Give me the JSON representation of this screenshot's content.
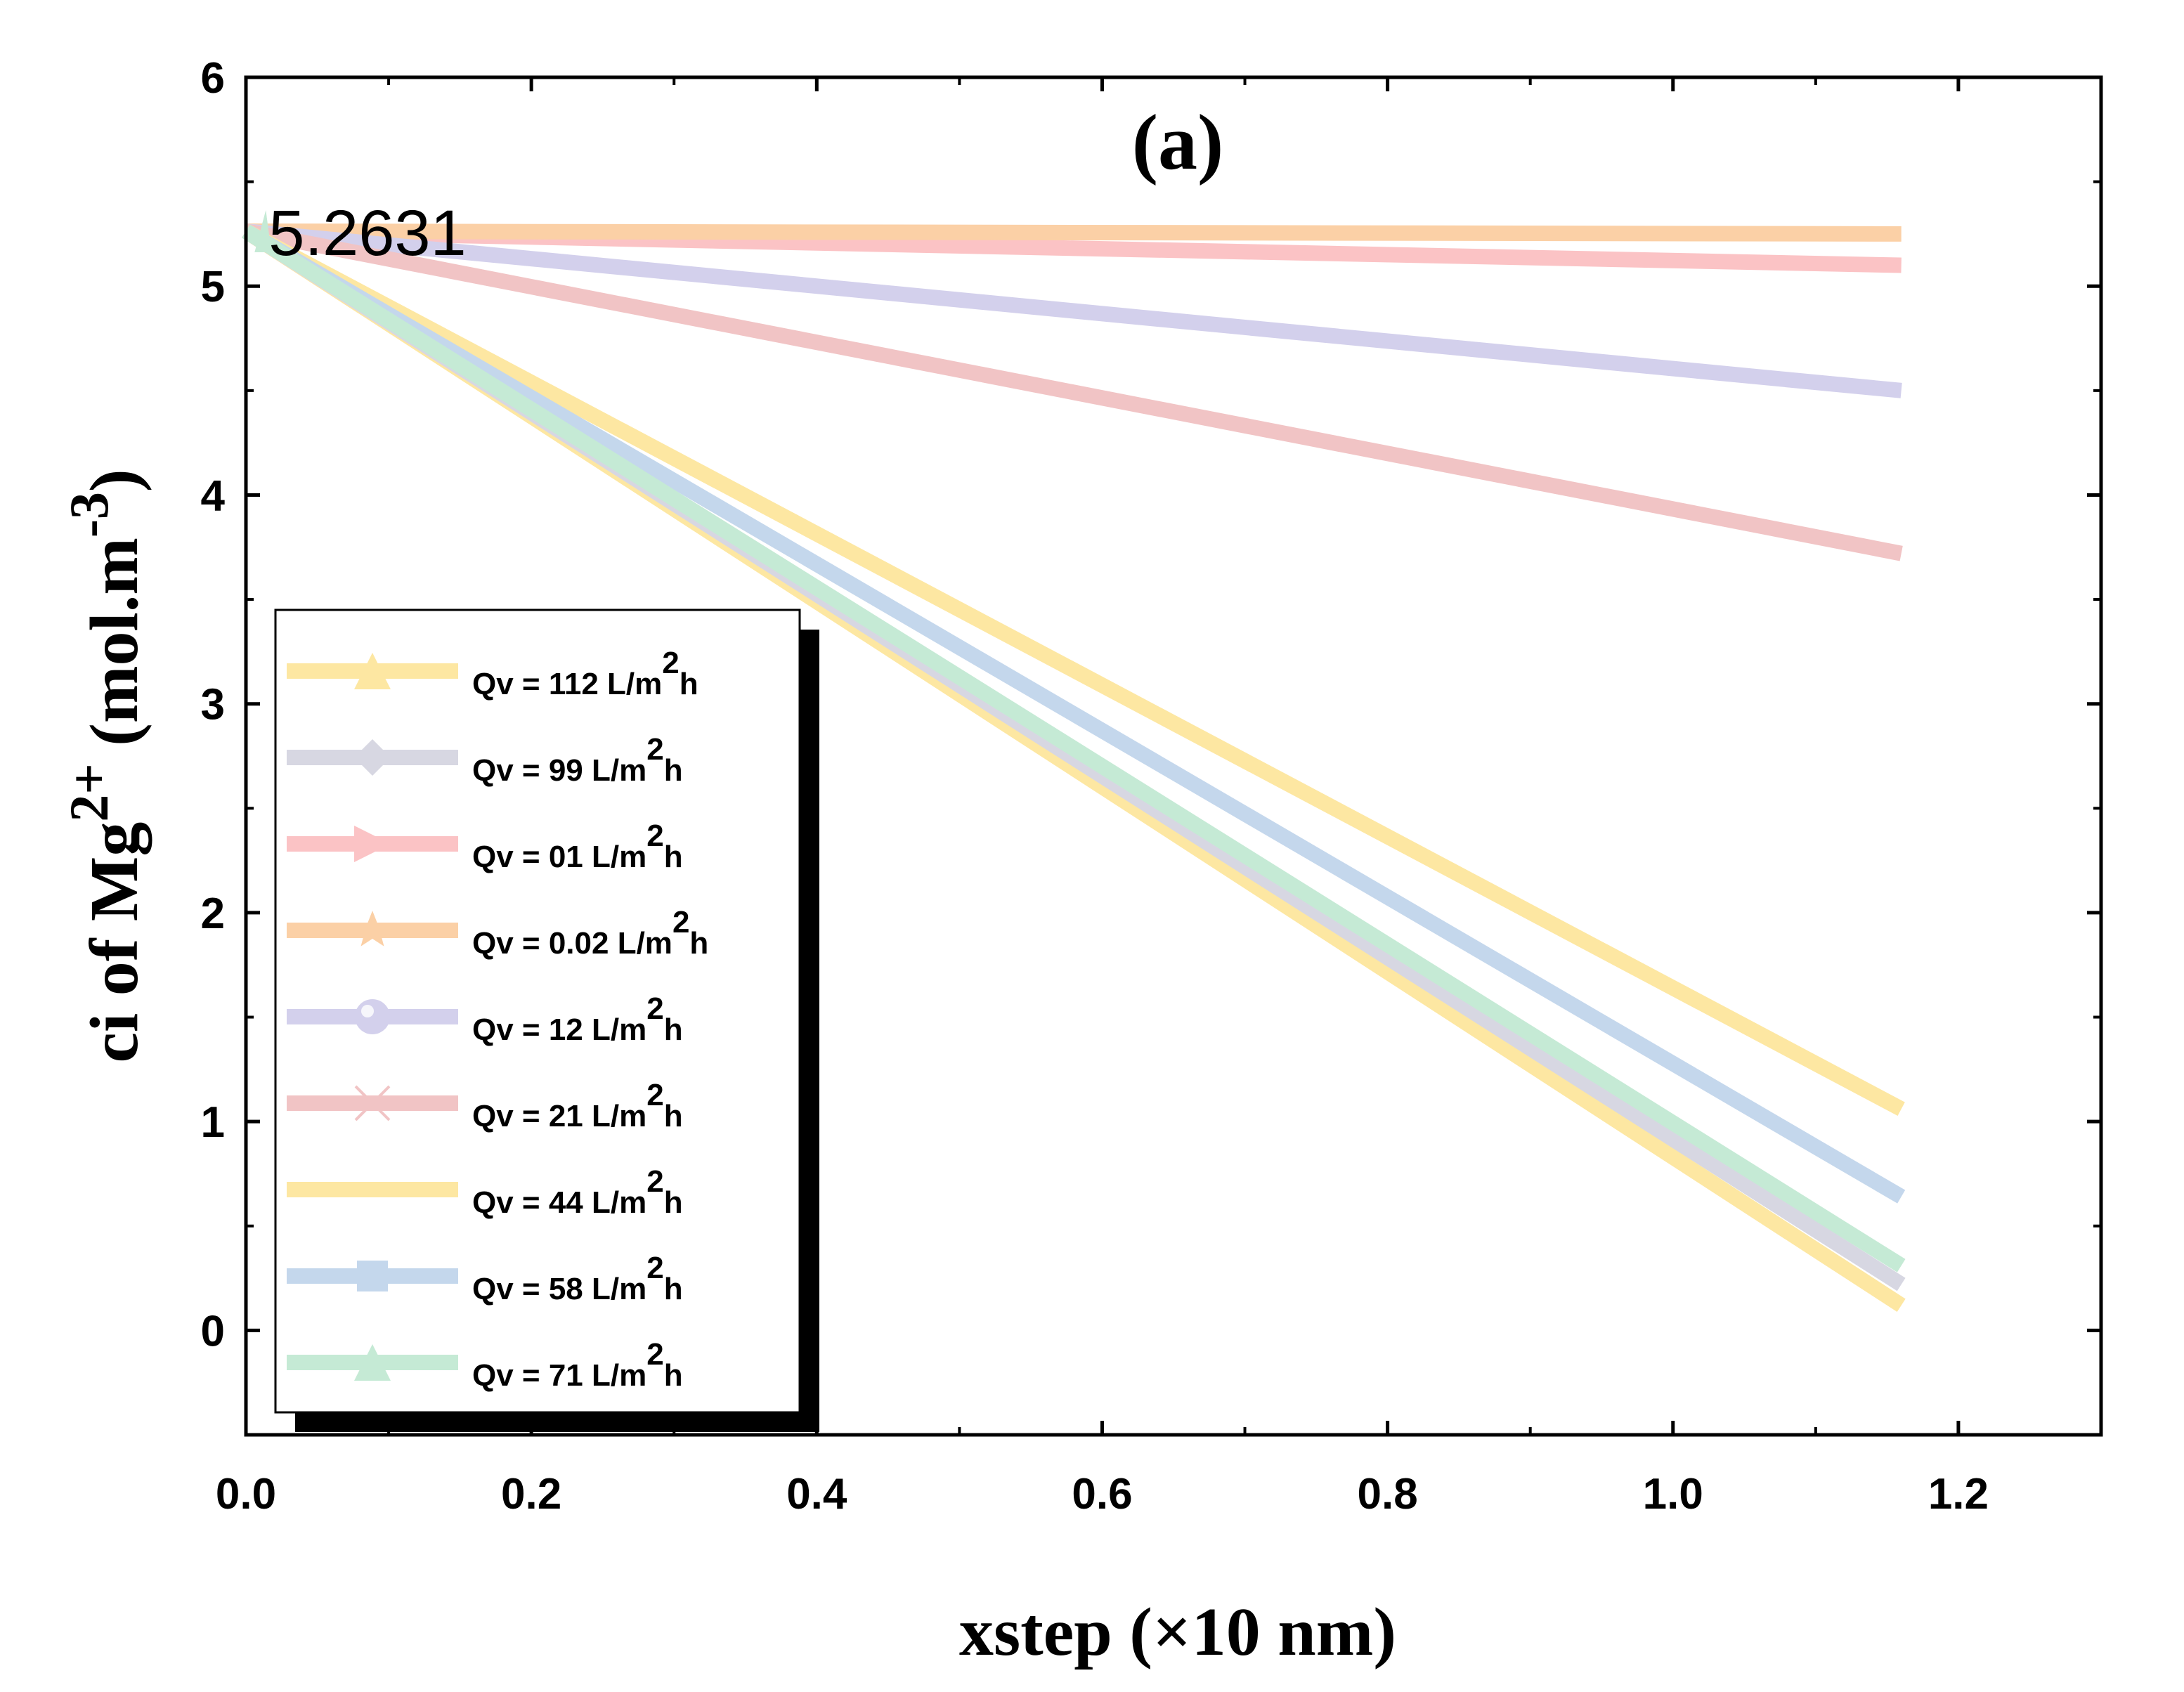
{
  "chart_data": {
    "type": "line",
    "title": "(a)",
    "xlabel": "xstep (×10 nm)",
    "ylabel_parts": {
      "prefix": "ci of Mg",
      "sup": "2+",
      "unit_open": " (mol.m",
      "unit_sup": "-3",
      "unit_close": ")"
    },
    "xlim": [
      0,
      1.3
    ],
    "ylim": [
      -0.5,
      6
    ],
    "x_ticks": [
      "0.0",
      "0.2",
      "0.4",
      "0.6",
      "0.8",
      "1.0",
      "1.2"
    ],
    "x_tick_values": [
      0,
      0.2,
      0.4,
      0.6,
      0.8,
      1.0,
      1.2
    ],
    "y_ticks": [
      "0",
      "1",
      "2",
      "3",
      "4",
      "5",
      "6"
    ],
    "y_tick_values": [
      0,
      1,
      2,
      3,
      4,
      5,
      6
    ],
    "annotation": {
      "text": "5.2631",
      "x": 0.01,
      "y": 5.2631
    },
    "legend_position": "lower-left",
    "series": [
      {
        "name_prefix": "Qv = 112 L/m",
        "sup": "2",
        "name_suffix": "h",
        "marker": "triangle",
        "color": "#fde7a2",
        "x": [
          0,
          1.16
        ],
        "y": [
          5.2631,
          0.12
        ]
      },
      {
        "name_prefix": "Qv = 99 L/m",
        "sup": "2",
        "name_suffix": "h",
        "marker": "diamond",
        "color": "#d7d7e2",
        "x": [
          0,
          1.16
        ],
        "y": [
          5.2631,
          0.22
        ]
      },
      {
        "name_prefix": "Qv = 01 L/m",
        "sup": "2",
        "name_suffix": "h",
        "marker": "triangle-right",
        "color": "#fbc3c5",
        "x": [
          0,
          1.16
        ],
        "y": [
          5.2631,
          5.1
        ]
      },
      {
        "name_prefix": "Qv = 0.02 L/m",
        "sup": "2",
        "name_suffix": "h",
        "marker": "star",
        "color": "#fbd0a6",
        "x": [
          0,
          1.16
        ],
        "y": [
          5.2631,
          5.25
        ]
      },
      {
        "name_prefix": "Qv = 12 L/m",
        "sup": "2",
        "name_suffix": "h",
        "marker": "sphere",
        "color": "#d3d0ec",
        "x": [
          0,
          1.16
        ],
        "y": [
          5.2631,
          4.5
        ]
      },
      {
        "name_prefix": "Qv = 21 L/m",
        "sup": "2",
        "name_suffix": "h",
        "marker": "cross",
        "color": "#f1c4c5",
        "x": [
          0,
          1.16
        ],
        "y": [
          5.2631,
          3.72
        ]
      },
      {
        "name_prefix": "Qv = 44 L/m",
        "sup": "2",
        "name_suffix": "h",
        "marker": "dash",
        "color": "#fde7a2",
        "x": [
          0,
          1.16
        ],
        "y": [
          5.2631,
          1.06
        ]
      },
      {
        "name_prefix": "Qv = 58 L/m",
        "sup": "2",
        "name_suffix": "h",
        "marker": "square",
        "color": "#c4d7ec",
        "x": [
          0,
          1.16
        ],
        "y": [
          5.2631,
          0.64
        ]
      },
      {
        "name_prefix": "Qv = 71 L/m",
        "sup": "2",
        "name_suffix": "h",
        "marker": "triangle",
        "color": "#c5ead5",
        "x": [
          0,
          1.16
        ],
        "y": [
          5.2631,
          0.31
        ]
      }
    ]
  }
}
